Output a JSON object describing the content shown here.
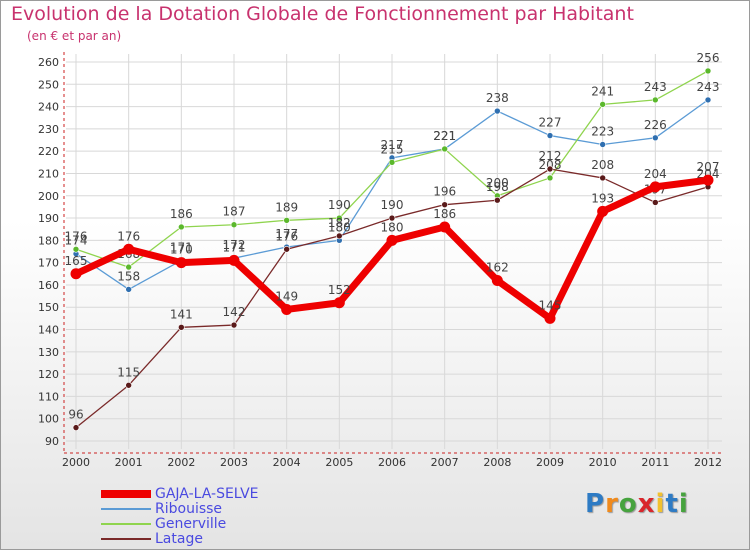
{
  "header": {
    "title": "Evolution de la Dotation Globale de Fonctionnement par Habitant",
    "subtitle": "(en € et par an)"
  },
  "brand": {
    "text": "Proxiti",
    "colors": [
      "#2e7bc4",
      "#f08a1c",
      "#46a33e",
      "#d9262c",
      "#f2c12e",
      "#2e7bc4",
      "#46a33e"
    ]
  },
  "colors": {
    "title": "#c8326e",
    "axis": "#cc2222",
    "grid": "#d8d8d8",
    "legend_text": "#4a4ae0",
    "value_label": "#444444"
  },
  "chart_data": {
    "type": "line",
    "title": "Evolution de la Dotation Globale de Fonctionnement par Habitant",
    "subtitle": "(en € et par an)",
    "xlabel": "",
    "ylabel": "",
    "x": [
      2000,
      2001,
      2002,
      2003,
      2004,
      2005,
      2006,
      2007,
      2008,
      2009,
      2010,
      2011,
      2012
    ],
    "yticks": [
      90,
      100,
      110,
      120,
      130,
      140,
      150,
      160,
      170,
      180,
      190,
      200,
      210,
      220,
      230,
      240,
      250,
      260
    ],
    "ylim": [
      90,
      260
    ],
    "grid": true,
    "legend_position": "bottom-left",
    "series": [
      {
        "name": "Ribouisse",
        "color": "#5b9bd5",
        "marker": "#2f6fb0",
        "width": 1.3,
        "values": [
          174,
          158,
          171,
          172,
          177,
          180,
          217,
          221,
          238,
          227,
          223,
          226,
          243
        ]
      },
      {
        "name": "Generville",
        "color": "#8fd44e",
        "marker": "#5bb82c",
        "width": 1.3,
        "values": [
          176,
          168,
          186,
          187,
          189,
          190,
          215,
          221,
          200,
          208,
          241,
          243,
          256
        ]
      },
      {
        "name": "Latage",
        "color": "#7a2a2a",
        "marker": "#5a1a1a",
        "width": 1.3,
        "values": [
          96,
          115,
          141,
          142,
          176,
          182,
          190,
          196,
          198,
          212,
          208,
          197,
          204
        ]
      },
      {
        "name": "GAJA-LA-SELVE",
        "color": "#ee0000",
        "marker": "#ee0000",
        "width": 7,
        "values": [
          165,
          176,
          170,
          171,
          149,
          152,
          180,
          186,
          162,
          145,
          193,
          204,
          207
        ]
      }
    ]
  }
}
